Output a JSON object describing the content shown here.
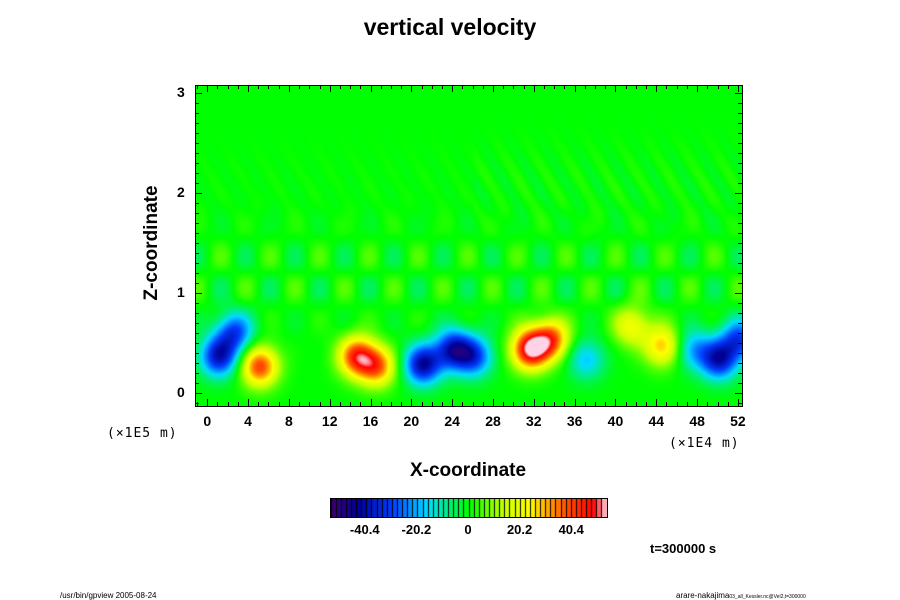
{
  "chart_data": {
    "type": "heatmap",
    "title": "vertical velocity",
    "xlabel": "X-coordinate",
    "ylabel": "Z-coordinate",
    "x_unit": "(×1E4 m)",
    "y_unit": "(×1E5 m)",
    "x_ticks": [
      "0",
      "4",
      "8",
      "12",
      "16",
      "20",
      "24",
      "28",
      "32",
      "36",
      "40",
      "44",
      "48",
      "52"
    ],
    "y_ticks": [
      "0",
      "1",
      "2",
      "3"
    ],
    "xlim": [
      -1.2,
      52.3
    ],
    "ylim": [
      -0.12,
      3.08
    ],
    "colorbar": {
      "ticks": [
        "-40.4",
        "-20.2",
        "0",
        "20.2",
        "40.4"
      ],
      "tick_values": [
        -40.4,
        -20.2,
        0,
        20.2,
        40.4
      ],
      "range": [
        -54,
        54
      ]
    },
    "features": [
      {
        "x": 1.0,
        "z": 0.38,
        "value": -38
      },
      {
        "x": 2.5,
        "z": 0.62,
        "value": -30
      },
      {
        "x": 5.0,
        "z": 0.28,
        "value": 40
      },
      {
        "x": 14.5,
        "z": 0.38,
        "value": 42
      },
      {
        "x": 16.5,
        "z": 0.28,
        "value": 35
      },
      {
        "x": 21.0,
        "z": 0.3,
        "value": -42
      },
      {
        "x": 24.0,
        "z": 0.45,
        "value": -38
      },
      {
        "x": 26.0,
        "z": 0.38,
        "value": -30
      },
      {
        "x": 31.5,
        "z": 0.45,
        "value": 52
      },
      {
        "x": 33.5,
        "z": 0.55,
        "value": 38
      },
      {
        "x": 37.0,
        "z": 0.35,
        "value": -18
      },
      {
        "x": 41.5,
        "z": 0.68,
        "value": 22
      },
      {
        "x": 44.5,
        "z": 0.48,
        "value": 28
      },
      {
        "x": 47.5,
        "z": 0.45,
        "value": -20
      },
      {
        "x": 50.0,
        "z": 0.35,
        "value": -38
      },
      {
        "x": 52.0,
        "z": 0.55,
        "value": -30
      }
    ],
    "time_label": "t=300000 s"
  },
  "footer": {
    "left": "/usr/bin/gpview 2005-08-24",
    "right": "arare-nakajima",
    "right_small": "03_all_Kessler.nc@Vel2,t=300000"
  }
}
